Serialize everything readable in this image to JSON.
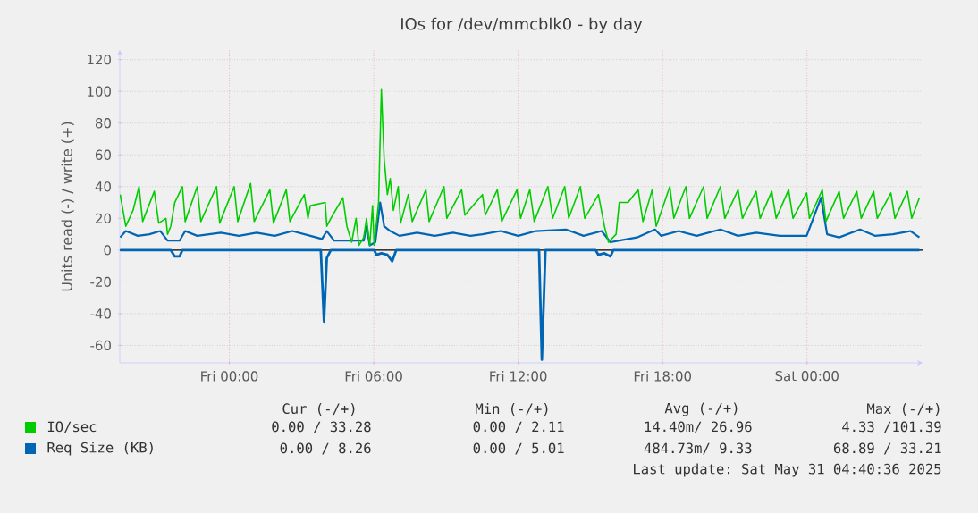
{
  "chart_data": {
    "type": "line",
    "title": "IOs for /dev/mmcblk0 - by day",
    "ylabel": "Units read (-) / write (+)",
    "xlim": [
      "2025-05-29T19:27",
      "2025-05-31T04:48"
    ],
    "ylim": [
      -71,
      126
    ],
    "xticks": [
      {
        "value": "2025-05-30T00:00",
        "label": "Fri 00:00"
      },
      {
        "value": "2025-05-30T06:00",
        "label": "Fri 06:00"
      },
      {
        "value": "2025-05-30T12:00",
        "label": "Fri 12:00"
      },
      {
        "value": "2025-05-30T18:00",
        "label": "Fri 18:00"
      },
      {
        "value": "2025-05-31T00:00",
        "label": "Sat 00:00"
      }
    ],
    "yticks": [
      -60,
      -40,
      -20,
      0,
      20,
      40,
      60,
      80,
      100,
      120
    ],
    "grid": true,
    "legend": "bottom",
    "ref_lines": [
      {
        "axis": "y",
        "value": 0,
        "color": "#000000"
      }
    ],
    "series": [
      {
        "name": "IO/sec",
        "color": "#00cc00",
        "x": [
          "2025-05-29T19:28",
          "2025-05-29T19:42",
          "2025-05-29T20:00",
          "2025-05-29T20:15",
          "2025-05-29T20:24",
          "2025-05-29T20:53",
          "2025-05-29T21:04",
          "2025-05-29T21:22",
          "2025-05-29T21:26",
          "2025-05-29T21:34",
          "2025-05-29T21:44",
          "2025-05-29T22:03",
          "2025-05-29T22:10",
          "2025-05-29T22:40",
          "2025-05-29T22:49",
          "2025-05-29T23:28",
          "2025-05-29T23:36",
          "2025-05-30T00:12",
          "2025-05-30T00:21",
          "2025-05-30T00:53",
          "2025-05-30T01:02",
          "2025-05-30T01:41",
          "2025-05-30T01:50",
          "2025-05-30T02:22",
          "2025-05-30T02:31",
          "2025-05-30T03:07",
          "2025-05-30T03:16",
          "2025-05-30T03:22",
          "2025-05-30T03:59",
          "2025-05-30T04:03",
          "2025-05-30T04:13",
          "2025-05-30T04:43",
          "2025-05-30T04:53",
          "2025-05-30T05:05",
          "2025-05-30T05:16",
          "2025-05-30T05:23",
          "2025-05-30T05:35",
          "2025-05-30T05:42",
          "2025-05-30T05:50",
          "2025-05-30T05:57",
          "2025-05-30T06:01",
          "2025-05-30T06:12",
          "2025-05-30T06:19",
          "2025-05-30T06:26",
          "2025-05-30T06:34",
          "2025-05-30T06:41",
          "2025-05-30T06:49",
          "2025-05-30T07:01",
          "2025-05-30T07:07",
          "2025-05-30T07:26",
          "2025-05-30T07:36",
          "2025-05-30T08:10",
          "2025-05-30T08:18",
          "2025-05-30T08:55",
          "2025-05-30T09:02",
          "2025-05-30T09:39",
          "2025-05-30T09:47",
          "2025-05-30T10:31",
          "2025-05-30T10:38",
          "2025-05-30T11:08",
          "2025-05-30T11:19",
          "2025-05-30T11:57",
          "2025-05-30T12:06",
          "2025-05-30T12:29",
          "2025-05-30T12:40",
          "2025-05-30T13:14",
          "2025-05-30T13:26",
          "2025-05-30T13:56",
          "2025-05-30T14:06",
          "2025-05-30T14:35",
          "2025-05-30T14:46",
          "2025-05-30T15:20",
          "2025-05-30T15:35",
          "2025-05-30T15:45",
          "2025-05-30T16:04",
          "2025-05-30T16:12",
          "2025-05-30T16:34",
          "2025-05-30T16:49",
          "2025-05-30T16:59",
          "2025-05-30T17:11",
          "2025-05-30T17:34",
          "2025-05-30T17:44",
          "2025-05-30T18:18",
          "2025-05-30T18:28",
          "2025-05-30T18:58",
          "2025-05-30T19:07",
          "2025-05-30T19:42",
          "2025-05-30T19:51",
          "2025-05-30T20:24",
          "2025-05-30T20:35",
          "2025-05-30T21:08",
          "2025-05-30T21:19",
          "2025-05-30T21:53",
          "2025-05-30T22:03",
          "2025-05-30T22:32",
          "2025-05-30T22:43",
          "2025-05-30T23:14",
          "2025-05-30T23:25",
          "2025-05-30T23:59",
          "2025-05-31T00:06",
          "2025-05-31T00:38",
          "2025-05-31T00:47",
          "2025-05-31T01:20",
          "2025-05-31T01:31",
          "2025-05-31T02:04",
          "2025-05-31T02:15",
          "2025-05-31T02:46",
          "2025-05-31T02:55",
          "2025-05-31T03:29",
          "2025-05-31T03:39",
          "2025-05-31T04:10",
          "2025-05-31T04:21",
          "2025-05-31T04:40"
        ],
        "values": [
          35,
          15,
          25,
          40,
          18,
          37,
          17,
          20,
          10,
          15,
          30,
          40,
          18,
          40,
          18,
          40,
          17,
          40,
          18,
          42,
          18,
          38,
          17,
          38,
          18,
          35,
          20,
          28,
          30,
          15,
          20,
          33,
          15,
          5,
          20,
          3,
          8,
          20,
          3,
          28,
          3,
          30,
          101,
          57,
          35,
          45,
          25,
          40,
          17,
          35,
          18,
          38,
          18,
          40,
          20,
          38,
          22,
          35,
          22,
          38,
          18,
          38,
          20,
          38,
          18,
          40,
          20,
          40,
          20,
          40,
          20,
          35,
          15,
          5,
          10,
          30,
          30,
          35,
          38,
          18,
          38,
          15,
          40,
          20,
          40,
          20,
          40,
          20,
          40,
          20,
          38,
          20,
          37,
          20,
          37,
          20,
          38,
          20,
          36,
          20,
          38,
          18,
          37,
          20,
          37,
          20,
          37,
          20,
          36,
          20,
          37,
          20,
          33
        ]
      },
      {
        "name": "Req Size (KB)",
        "color": "#0066b3",
        "x": [
          "2025-05-29T19:28",
          "2025-05-29T19:42",
          "2025-05-29T20:12",
          "2025-05-29T20:41",
          "2025-05-29T21:08",
          "2025-05-29T21:26",
          "2025-05-29T21:56",
          "2025-05-29T22:10",
          "2025-05-29T22:40",
          "2025-05-29T23:39",
          "2025-05-30T00:24",
          "2025-05-30T01:08",
          "2025-05-30T01:53",
          "2025-05-30T02:37",
          "2025-05-30T03:22",
          "2025-05-30T03:51",
          "2025-05-30T04:03",
          "2025-05-30T04:21",
          "2025-05-30T05:35",
          "2025-05-30T05:42",
          "2025-05-30T05:50",
          "2025-05-30T06:04",
          "2025-05-30T06:16",
          "2025-05-30T06:26",
          "2025-05-30T06:41",
          "2025-05-30T07:04",
          "2025-05-30T07:48",
          "2025-05-30T08:32",
          "2025-05-30T09:17",
          "2025-05-30T10:01",
          "2025-05-30T10:31",
          "2025-05-30T11:16",
          "2025-05-30T12:00",
          "2025-05-30T12:44",
          "2025-05-30T13:59",
          "2025-05-30T14:43",
          "2025-05-30T15:28",
          "2025-05-30T15:50",
          "2025-05-30T16:12",
          "2025-05-30T16:56",
          "2025-05-30T17:41",
          "2025-05-30T17:56",
          "2025-05-30T18:40",
          "2025-05-30T19:25",
          "2025-05-30T20:24",
          "2025-05-30T21:08",
          "2025-05-30T21:53",
          "2025-05-30T22:52",
          "2025-05-30T23:59",
          "2025-05-31T00:35",
          "2025-05-31T00:50",
          "2025-05-31T01:20",
          "2025-05-31T02:12",
          "2025-05-31T02:49",
          "2025-05-31T03:34",
          "2025-05-31T04:18",
          "2025-05-31T04:40"
        ],
        "values": [
          8,
          12,
          9,
          10,
          12,
          6,
          6,
          12,
          9,
          11,
          9,
          11,
          9,
          12,
          9,
          7,
          12,
          6,
          6,
          15,
          3,
          5,
          30,
          15,
          12,
          9,
          11,
          9,
          11,
          9,
          10,
          12,
          9,
          12,
          13,
          9,
          12,
          5,
          6,
          8,
          13,
          9,
          12,
          9,
          13,
          9,
          11,
          9,
          9,
          33,
          10,
          8,
          13,
          9,
          10,
          12,
          8
        ]
      },
      {
        "color": "#0066b3",
        "x": [
          "2025-05-29T19:28",
          "2025-05-29T21:34",
          "2025-05-29T21:44",
          "2025-05-29T21:56",
          "2025-05-29T22:03",
          "2025-05-30T03:48",
          "2025-05-30T03:56",
          "2025-05-30T04:03",
          "2025-05-30T04:13",
          "2025-05-30T06:01",
          "2025-05-30T06:07",
          "2025-05-30T06:19",
          "2025-05-30T06:34",
          "2025-05-30T06:46",
          "2025-05-30T06:56",
          "2025-05-30T12:52",
          "2025-05-30T12:59",
          "2025-05-30T13:08",
          "2025-05-30T15:13",
          "2025-05-30T15:20",
          "2025-05-30T15:35",
          "2025-05-30T15:50",
          "2025-05-30T15:57",
          "2025-05-31T04:40"
        ],
        "values": [
          0,
          0,
          -4,
          -4,
          0,
          0,
          -45,
          -5,
          0,
          0,
          -3,
          -2,
          -3,
          -7,
          0,
          0,
          -69,
          0,
          0,
          -3,
          -2,
          -4,
          0,
          0
        ]
      }
    ],
    "annotations": [
      "Cur (-/+)",
      "Min (-/+)",
      "Avg (-/+)",
      "Max (-/+)",
      "0.00 / 33.28",
      "0.00 /  2.11",
      "14.40m/ 26.96",
      "4.33 /101.39",
      "0.00 /  8.26",
      "0.00 /  5.01",
      "484.73m/  9.33",
      "68.89 / 33.21",
      "Last update: Sat May 31 04:40:36 2025"
    ]
  }
}
